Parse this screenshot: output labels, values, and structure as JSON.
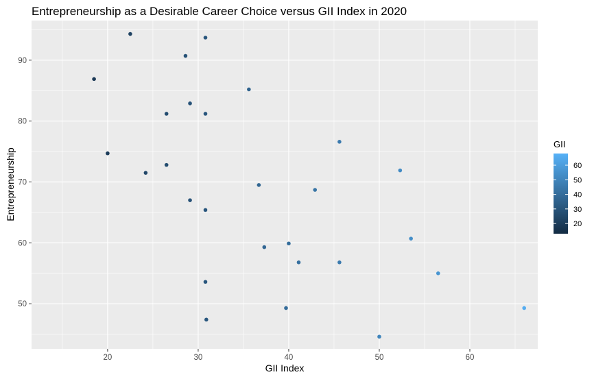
{
  "chart_data": {
    "type": "scatter",
    "title": "Entrepreneurship as a Desirable Career Choice versus GII Index in 2020",
    "xlabel": "GII Index",
    "ylabel": "Entrepreneurship",
    "xlim": [
      11.6,
      67.5
    ],
    "ylim": [
      42.6,
      96.5
    ],
    "xticks": [
      20,
      30,
      40,
      50,
      60
    ],
    "yticks": [
      50,
      60,
      70,
      80,
      90
    ],
    "grid": true,
    "legend": {
      "title": "GII",
      "position": "right",
      "type": "colorbar",
      "ticks": [
        20,
        30,
        40,
        50,
        60
      ],
      "range": [
        13,
        68
      ],
      "color_low": "#132B43",
      "color_high": "#56B1F7"
    },
    "points": [
      {
        "x": 18.5,
        "y": 86.9
      },
      {
        "x": 20.0,
        "y": 74.7
      },
      {
        "x": 22.5,
        "y": 94.3
      },
      {
        "x": 24.2,
        "y": 71.5
      },
      {
        "x": 26.5,
        "y": 81.2
      },
      {
        "x": 26.5,
        "y": 72.8
      },
      {
        "x": 28.6,
        "y": 90.7
      },
      {
        "x": 29.1,
        "y": 82.9
      },
      {
        "x": 29.1,
        "y": 67.0
      },
      {
        "x": 30.8,
        "y": 93.7
      },
      {
        "x": 30.8,
        "y": 81.2
      },
      {
        "x": 30.8,
        "y": 65.4
      },
      {
        "x": 30.8,
        "y": 53.6
      },
      {
        "x": 30.9,
        "y": 47.4
      },
      {
        "x": 35.6,
        "y": 85.2
      },
      {
        "x": 36.7,
        "y": 69.5
      },
      {
        "x": 37.3,
        "y": 59.3
      },
      {
        "x": 39.7,
        "y": 49.3
      },
      {
        "x": 40.0,
        "y": 59.9
      },
      {
        "x": 41.1,
        "y": 56.8
      },
      {
        "x": 42.9,
        "y": 68.7
      },
      {
        "x": 45.6,
        "y": 76.6
      },
      {
        "x": 45.6,
        "y": 56.8
      },
      {
        "x": 50.0,
        "y": 44.6
      },
      {
        "x": 52.3,
        "y": 71.9
      },
      {
        "x": 53.5,
        "y": 60.7
      },
      {
        "x": 56.5,
        "y": 55.0
      },
      {
        "x": 66.0,
        "y": 49.3
      }
    ]
  }
}
